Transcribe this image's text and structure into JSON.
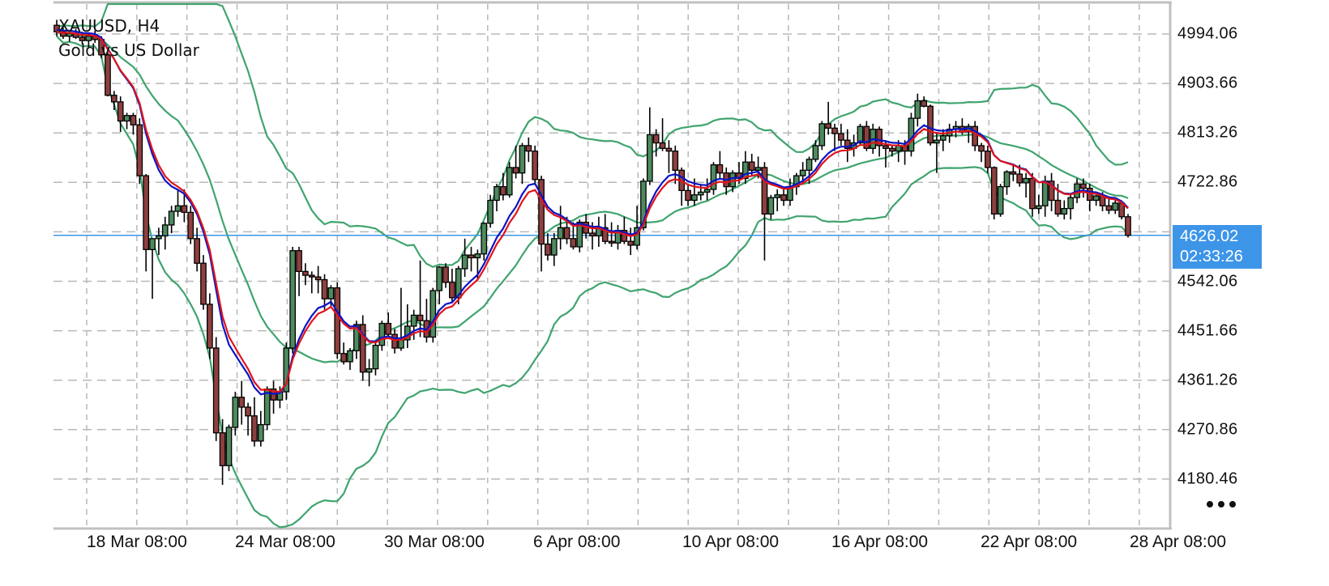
{
  "header": {
    "symbol_timeframe": "XAUUSD, H4",
    "description": "Gold vs US Dollar"
  },
  "current_price": {
    "price": "4626.02",
    "countdown": "02:33:26",
    "color": "#3d95e8"
  },
  "more_menu": {
    "icon": "more-horizontal-icon"
  },
  "colors": {
    "bullish": "#4e8a5e",
    "bearish": "#8f3f3f",
    "wick": "#000000",
    "ma_fast": "#0b14c4",
    "ma_slow": "#e0141c",
    "bollinger": "#3fa46e",
    "grid": "#b8b8b8",
    "axis": "#c0c0c0",
    "current_line": "#3d95e8"
  },
  "chart_data": {
    "type": "candlestick",
    "title": "XAUUSD, H4 — Gold vs US Dollar",
    "xlabel": "",
    "ylabel": "",
    "ylim": [
      4125,
      5055
    ],
    "y_ticks": [
      "4994.06",
      "4903.66",
      "4813.26",
      "4722.86",
      "4542.06",
      "4451.66",
      "4361.26",
      "4270.86",
      "4180.46"
    ],
    "x_ticks": [
      "18 Mar 08:00",
      "24 Mar 08:00",
      "30 Mar 08:00",
      "6 Apr 08:00",
      "10 Apr 08:00",
      "16 Apr 08:00",
      "22 Apr 08:00",
      "28 Apr 08:00"
    ],
    "grid": true,
    "current_price_line": 4626.02,
    "indicators": [
      "Moving Average (blue)",
      "Moving Average (red)",
      "Bollinger Bands (green)"
    ],
    "candles": [
      [
        5010,
        5020,
        4990,
        4998
      ],
      [
        4998,
        5008,
        4985,
        4990
      ],
      [
        4990,
        5000,
        4980,
        4995
      ],
      [
        4995,
        5003,
        4985,
        4988
      ],
      [
        4988,
        4998,
        4975,
        4982
      ],
      [
        4982,
        4995,
        4970,
        4990
      ],
      [
        4990,
        5000,
        4978,
        4984
      ],
      [
        4984,
        4990,
        4950,
        4956
      ],
      [
        4956,
        4960,
        4880,
        4882
      ],
      [
        4882,
        4890,
        4855,
        4870
      ],
      [
        4870,
        4880,
        4815,
        4835
      ],
      [
        4835,
        4850,
        4820,
        4845
      ],
      [
        4845,
        4850,
        4810,
        4828
      ],
      [
        4828,
        4840,
        4720,
        4735
      ],
      [
        4735,
        4738,
        4560,
        4600
      ],
      [
        4600,
        4612,
        4510,
        4620
      ],
      [
        4620,
        4640,
        4590,
        4625
      ],
      [
        4625,
        4660,
        4600,
        4645
      ],
      [
        4645,
        4680,
        4630,
        4670
      ],
      [
        4670,
        4710,
        4660,
        4680
      ],
      [
        4680,
        4710,
        4650,
        4668
      ],
      [
        4668,
        4680,
        4610,
        4620
      ],
      [
        4620,
        4640,
        4560,
        4575
      ],
      [
        4575,
        4590,
        4490,
        4500
      ],
      [
        4500,
        4520,
        4400,
        4420
      ],
      [
        4420,
        4440,
        4250,
        4265
      ],
      [
        4265,
        4290,
        4170,
        4205
      ],
      [
        4205,
        4280,
        4195,
        4275
      ],
      [
        4275,
        4340,
        4260,
        4330
      ],
      [
        4330,
        4360,
        4280,
        4312
      ],
      [
        4312,
        4320,
        4260,
        4296
      ],
      [
        4296,
        4330,
        4240,
        4250
      ],
      [
        4250,
        4305,
        4240,
        4280
      ],
      [
        4280,
        4350,
        4270,
        4345
      ],
      [
        4345,
        4360,
        4300,
        4325
      ],
      [
        4325,
        4350,
        4310,
        4340
      ],
      [
        4340,
        4430,
        4325,
        4420
      ],
      [
        4420,
        4605,
        4410,
        4598
      ],
      [
        4598,
        4605,
        4515,
        4560
      ],
      [
        4560,
        4575,
        4535,
        4553
      ],
      [
        4553,
        4560,
        4520,
        4550
      ],
      [
        4550,
        4570,
        4520,
        4545
      ],
      [
        4545,
        4555,
        4490,
        4510
      ],
      [
        4510,
        4535,
        4495,
        4530
      ],
      [
        4530,
        4540,
        4400,
        4410
      ],
      [
        4410,
        4430,
        4390,
        4395
      ],
      [
        4395,
        4420,
        4380,
        4415
      ],
      [
        4415,
        4470,
        4400,
        4463
      ],
      [
        4463,
        4480,
        4360,
        4376
      ],
      [
        4376,
        4400,
        4350,
        4382
      ],
      [
        4382,
        4430,
        4370,
        4425
      ],
      [
        4425,
        4470,
        4415,
        4465
      ],
      [
        4465,
        4485,
        4440,
        4445
      ],
      [
        4445,
        4455,
        4410,
        4420
      ],
      [
        4420,
        4530,
        4415,
        4435
      ],
      [
        4435,
        4500,
        4420,
        4460
      ],
      [
        4460,
        4490,
        4435,
        4480
      ],
      [
        4480,
        4580,
        4440,
        4470
      ],
      [
        4470,
        4510,
        4430,
        4440
      ],
      [
        4440,
        4530,
        4430,
        4525
      ],
      [
        4525,
        4570,
        4500,
        4568
      ],
      [
        4568,
        4575,
        4530,
        4540
      ],
      [
        4540,
        4565,
        4505,
        4512
      ],
      [
        4512,
        4570,
        4500,
        4565
      ],
      [
        4565,
        4620,
        4550,
        4590
      ],
      [
        4590,
        4605,
        4560,
        4585
      ],
      [
        4585,
        4600,
        4545,
        4592
      ],
      [
        4592,
        4650,
        4580,
        4648
      ],
      [
        4648,
        4700,
        4640,
        4690
      ],
      [
        4690,
        4720,
        4670,
        4715
      ],
      [
        4715,
        4740,
        4690,
        4700
      ],
      [
        4700,
        4760,
        4695,
        4750
      ],
      [
        4750,
        4790,
        4730,
        4740
      ],
      [
        4740,
        4795,
        4720,
        4790
      ],
      [
        4790,
        4805,
        4760,
        4780
      ],
      [
        4780,
        4790,
        4720,
        4728
      ],
      [
        4728,
        4735,
        4560,
        4610
      ],
      [
        4610,
        4630,
        4580,
        4590
      ],
      [
        4590,
        4630,
        4570,
        4620
      ],
      [
        4620,
        4680,
        4600,
        4640
      ],
      [
        4640,
        4660,
        4610,
        4620
      ],
      [
        4620,
        4650,
        4600,
        4605
      ],
      [
        4605,
        4655,
        4595,
        4650
      ],
      [
        4650,
        4665,
        4620,
        4630
      ],
      [
        4630,
        4650,
        4600,
        4625
      ],
      [
        4625,
        4660,
        4605,
        4640
      ],
      [
        4640,
        4665,
        4610,
        4615
      ],
      [
        4615,
        4650,
        4605,
        4612
      ],
      [
        4612,
        4645,
        4600,
        4635
      ],
      [
        4635,
        4660,
        4610,
        4615
      ],
      [
        4615,
        4640,
        4590,
        4608
      ],
      [
        4608,
        4680,
        4600,
        4640
      ],
      [
        4640,
        4730,
        4635,
        4725
      ],
      [
        4725,
        4860,
        4718,
        4810
      ],
      [
        4810,
        4820,
        4770,
        4795
      ],
      [
        4795,
        4840,
        4780,
        4785
      ],
      [
        4785,
        4800,
        4740,
        4780
      ],
      [
        4780,
        4790,
        4720,
        4745
      ],
      [
        4745,
        4750,
        4680,
        4708
      ],
      [
        4708,
        4720,
        4680,
        4690
      ],
      [
        4690,
        4730,
        4680,
        4700
      ],
      [
        4700,
        4720,
        4690,
        4705
      ],
      [
        4705,
        4730,
        4690,
        4710
      ],
      [
        4710,
        4760,
        4700,
        4755
      ],
      [
        4755,
        4780,
        4730,
        4740
      ],
      [
        4740,
        4750,
        4700,
        4715
      ],
      [
        4715,
        4745,
        4705,
        4740
      ],
      [
        4740,
        4760,
        4720,
        4730
      ],
      [
        4730,
        4780,
        4720,
        4760
      ],
      [
        4760,
        4775,
        4735,
        4745
      ],
      [
        4745,
        4770,
        4730,
        4750
      ],
      [
        4750,
        4760,
        4580,
        4665
      ],
      [
        4665,
        4700,
        4655,
        4695
      ],
      [
        4695,
        4710,
        4670,
        4700
      ],
      [
        4700,
        4715,
        4680,
        4690
      ],
      [
        4690,
        4730,
        4680,
        4715
      ],
      [
        4715,
        4740,
        4700,
        4735
      ],
      [
        4735,
        4760,
        4720,
        4745
      ],
      [
        4745,
        4770,
        4720,
        4765
      ],
      [
        4765,
        4800,
        4760,
        4790
      ],
      [
        4790,
        4835,
        4782,
        4830
      ],
      [
        4830,
        4870,
        4810,
        4822
      ],
      [
        4822,
        4830,
        4780,
        4812
      ],
      [
        4812,
        4830,
        4790,
        4800
      ],
      [
        4800,
        4820,
        4760,
        4785
      ],
      [
        4785,
        4810,
        4770,
        4795
      ],
      [
        4795,
        4830,
        4790,
        4825
      ],
      [
        4825,
        4835,
        4780,
        4785
      ],
      [
        4785,
        4830,
        4775,
        4820
      ],
      [
        4820,
        4825,
        4770,
        4790
      ],
      [
        4790,
        4800,
        4750,
        4785
      ],
      [
        4785,
        4790,
        4770,
        4780
      ],
      [
        4780,
        4800,
        4760,
        4790
      ],
      [
        4790,
        4800,
        4755,
        4780
      ],
      [
        4780,
        4850,
        4770,
        4840
      ],
      [
        4840,
        4885,
        4825,
        4872
      ],
      [
        4872,
        4880,
        4860,
        4862
      ],
      [
        4862,
        4865,
        4790,
        4795
      ],
      [
        4795,
        4815,
        4740,
        4800
      ],
      [
        4800,
        4820,
        4780,
        4808
      ],
      [
        4808,
        4830,
        4795,
        4820
      ],
      [
        4820,
        4835,
        4805,
        4825
      ],
      [
        4825,
        4840,
        4810,
        4815
      ],
      [
        4815,
        4830,
        4795,
        4825
      ],
      [
        4825,
        4835,
        4780,
        4790
      ],
      [
        4790,
        4795,
        4760,
        4780
      ],
      [
        4780,
        4790,
        4740,
        4750
      ],
      [
        4750,
        4752,
        4655,
        4665
      ],
      [
        4665,
        4720,
        4660,
        4715
      ],
      [
        4715,
        4745,
        4700,
        4742
      ],
      [
        4742,
        4755,
        4725,
        4738
      ],
      [
        4738,
        4755,
        4715,
        4722
      ],
      [
        4722,
        4740,
        4695,
        4730
      ],
      [
        4730,
        4740,
        4660,
        4675
      ],
      [
        4675,
        4700,
        4665,
        4680
      ],
      [
        4680,
        4735,
        4660,
        4725
      ],
      [
        4725,
        4740,
        4670,
        4690
      ],
      [
        4690,
        4720,
        4660,
        4665
      ],
      [
        4665,
        4690,
        4655,
        4675
      ],
      [
        4675,
        4700,
        4655,
        4695
      ],
      [
        4695,
        4730,
        4685,
        4720
      ],
      [
        4720,
        4730,
        4695,
        4712
      ],
      [
        4712,
        4720,
        4670,
        4690
      ],
      [
        4690,
        4700,
        4680,
        4698
      ],
      [
        4698,
        4705,
        4670,
        4680
      ],
      [
        4680,
        4692,
        4665,
        4672
      ],
      [
        4672,
        4690,
        4665,
        4685
      ],
      [
        4685,
        4688,
        4655,
        4660
      ],
      [
        4660,
        4665,
        4622,
        4626
      ]
    ]
  }
}
